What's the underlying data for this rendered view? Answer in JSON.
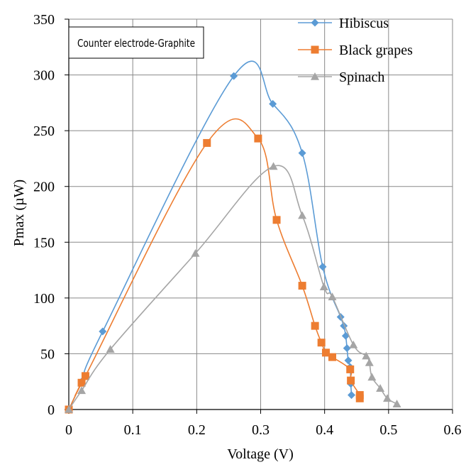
{
  "chart_data": {
    "type": "scatter",
    "xlabel": "Voltage (V)",
    "ylabel": "Pmax (µW)",
    "xlim": [
      0,
      0.6
    ],
    "ylim": [
      0,
      350
    ],
    "x_ticks": [
      "0",
      "0.1",
      "0.2",
      "0.3",
      "0.4",
      "0.5",
      "0.6"
    ],
    "y_ticks": [
      "0",
      "50",
      "100",
      "150",
      "200",
      "250",
      "300",
      "350"
    ],
    "grid": true,
    "legend_position": "top-right",
    "annotation": "Counter electrode-Graphite",
    "series": [
      {
        "name": "Hibiscus",
        "color": "#5b9bd5",
        "marker": "diamond",
        "points": [
          [
            0,
            0
          ],
          [
            0.02,
            25
          ],
          [
            0.053,
            70
          ],
          [
            0.258,
            299
          ],
          [
            0.319,
            274
          ],
          [
            0.365,
            230
          ],
          [
            0.397,
            128
          ],
          [
            0.425,
            83
          ],
          [
            0.43,
            75
          ],
          [
            0.433,
            66
          ],
          [
            0.435,
            55
          ],
          [
            0.437,
            44
          ],
          [
            0.44,
            38
          ],
          [
            0.441,
            23
          ],
          [
            0.442,
            13
          ]
        ]
      },
      {
        "name": "Black grapes",
        "color": "#ed7d31",
        "marker": "square",
        "points": [
          [
            0,
            0
          ],
          [
            0.02,
            24
          ],
          [
            0.026,
            30
          ],
          [
            0.216,
            239
          ],
          [
            0.296,
            243
          ],
          [
            0.325,
            170
          ],
          [
            0.365,
            111
          ],
          [
            0.385,
            75
          ],
          [
            0.395,
            60
          ],
          [
            0.402,
            51
          ],
          [
            0.412,
            47
          ],
          [
            0.44,
            36
          ],
          [
            0.441,
            26
          ],
          [
            0.455,
            13
          ],
          [
            0.455,
            10
          ]
        ]
      },
      {
        "name": "Spinach",
        "color": "#a5a5a5",
        "marker": "triangle",
        "points": [
          [
            0,
            0
          ],
          [
            0.02,
            17
          ],
          [
            0.065,
            54
          ],
          [
            0.198,
            140
          ],
          [
            0.32,
            218
          ],
          [
            0.365,
            174
          ],
          [
            0.399,
            110
          ],
          [
            0.412,
            101
          ],
          [
            0.445,
            58
          ],
          [
            0.465,
            48
          ],
          [
            0.47,
            42
          ],
          [
            0.474,
            29
          ],
          [
            0.487,
            19
          ],
          [
            0.498,
            10
          ],
          [
            0.513,
            5
          ]
        ]
      }
    ]
  }
}
